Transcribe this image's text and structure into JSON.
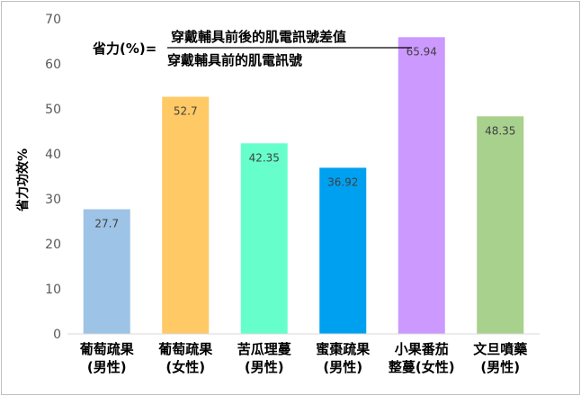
{
  "chart_data": {
    "type": "bar",
    "categories": [
      [
        "葡萄疏果",
        "(男性)"
      ],
      [
        "葡萄疏果",
        "(女性)"
      ],
      [
        "苦瓜理蔓",
        "(男性)"
      ],
      [
        "蜜棗疏果",
        "(男性)"
      ],
      [
        "小果番茄",
        "整蔓(女性)"
      ],
      [
        "文旦噴藥",
        "(男性)"
      ]
    ],
    "values": [
      27.7,
      52.7,
      42.35,
      36.92,
      65.94,
      48.35
    ],
    "value_labels": [
      "27.7",
      "52.7",
      "42.35",
      "36.92",
      "65.94",
      "48.35"
    ],
    "colors": [
      "#9dc3e6",
      "#ffc966",
      "#66ffcc",
      "#00a0f0",
      "#cc99ff",
      "#a9d18e"
    ],
    "ylabel": "省力功效%",
    "ylim": [
      0,
      70
    ],
    "yticks": [
      0,
      10,
      20,
      30,
      40,
      50,
      60,
      70
    ],
    "grid": false,
    "legend": "none",
    "formula": {
      "left": "省力(%)=",
      "numerator": "穿戴輔具前後的肌電訊號差值",
      "denominator": "穿戴輔具前的肌電訊號"
    }
  }
}
